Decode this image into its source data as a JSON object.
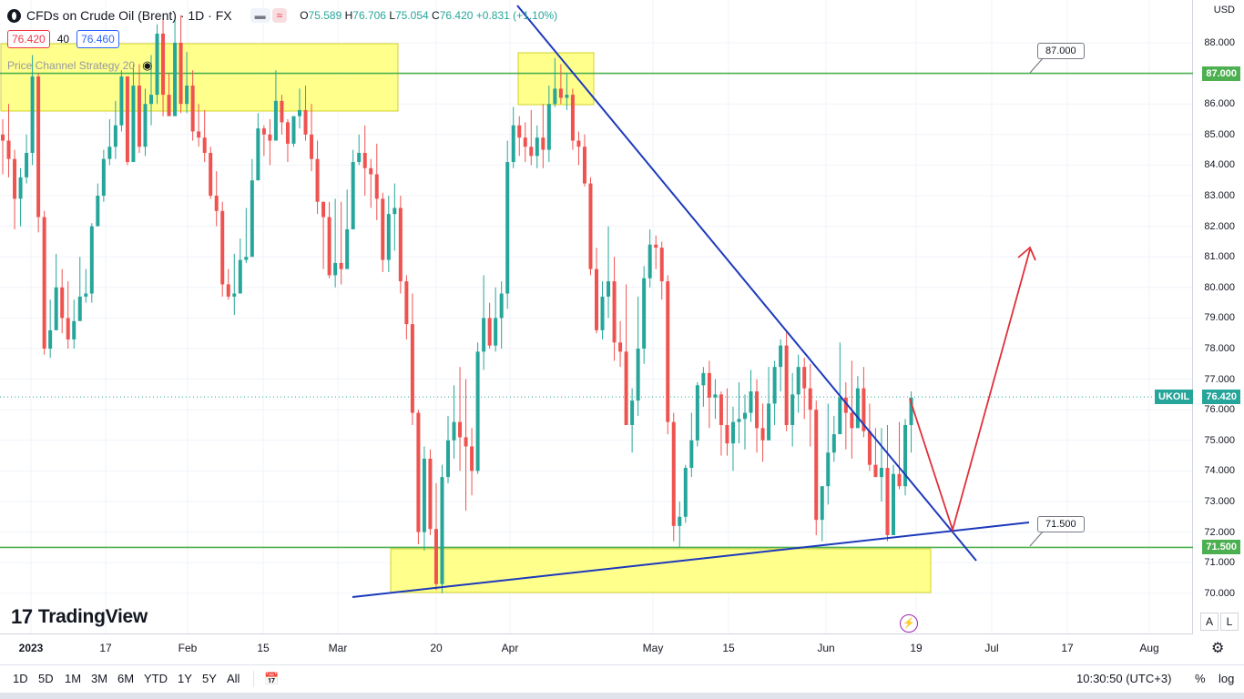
{
  "header": {
    "symbol_title": "CFDs on Crude Oil (Brent) · 1D · FX",
    "ohlc": {
      "o_label": "O",
      "o": "75.589",
      "h_label": "H",
      "h": "76.706",
      "l_label": "L",
      "l": "75.054",
      "c_label": "C",
      "c": "76.420",
      "change": "+0.831 (+1.10%)"
    },
    "bid": "76.420",
    "spread": "40",
    "ask": "76.460",
    "indicator": "Price Channel Strategy 20"
  },
  "colors": {
    "up": "#26a69a",
    "down": "#ef5350",
    "trend": "#1c39bb",
    "level": "#4caf50",
    "zone": "#ffff66",
    "projection": "#e0303a"
  },
  "chart_data": {
    "type": "candlestick",
    "currency": "USD",
    "ylim": [
      69.2,
      88.6
    ],
    "y_ticks": [
      "70.000",
      "71.000",
      "72.000",
      "73.000",
      "74.000",
      "75.000",
      "76.000",
      "77.000",
      "78.000",
      "79.000",
      "80.000",
      "81.000",
      "82.000",
      "83.000",
      "84.000",
      "85.000",
      "86.000",
      "87.000",
      "88.000"
    ],
    "x_ticks": [
      {
        "label": "2023",
        "bold": true
      },
      {
        "label": "17"
      },
      {
        "label": "Feb"
      },
      {
        "label": "15"
      },
      {
        "label": "Mar"
      },
      {
        "label": "20"
      },
      {
        "label": "Apr"
      },
      {
        "label": "May"
      },
      {
        "label": "15"
      },
      {
        "label": "Jun"
      },
      {
        "label": "19"
      },
      {
        "label": "Jul"
      },
      {
        "label": "17"
      },
      {
        "label": "Aug"
      }
    ],
    "candles": [
      [
        85.0,
        84.8,
        85.5,
        83.7
      ],
      [
        84.8,
        84.2,
        86.0,
        83.6
      ],
      [
        84.2,
        82.9,
        84.5,
        81.9
      ],
      [
        82.9,
        83.6,
        83.9,
        82.0
      ],
      [
        83.6,
        84.4,
        85.0,
        83.4
      ],
      [
        84.4,
        86.9,
        87.6,
        84.0
      ],
      [
        86.9,
        82.3,
        87.0,
        81.8
      ],
      [
        82.3,
        78.0,
        82.5,
        77.8
      ],
      [
        78.0,
        78.6,
        79.6,
        77.7
      ],
      [
        78.6,
        80.0,
        81.1,
        79.4
      ],
      [
        80.0,
        79.0,
        80.6,
        78.5
      ],
      [
        79.0,
        78.3,
        80.2,
        78.0
      ],
      [
        78.3,
        78.9,
        79.6,
        78.0
      ],
      [
        78.9,
        79.7,
        81.0,
        79.0
      ],
      [
        79.7,
        79.8,
        80.6,
        79.5
      ],
      [
        79.8,
        82.0,
        82.1,
        79.5
      ],
      [
        82.0,
        83.0,
        83.4,
        82.1
      ],
      [
        83.0,
        84.2,
        84.5,
        82.8
      ],
      [
        84.2,
        84.6,
        85.5,
        84.0
      ],
      [
        84.6,
        85.3,
        86.1,
        84.2
      ],
      [
        85.3,
        86.9,
        87.1,
        85.1
      ],
      [
        86.9,
        84.1,
        86.9,
        84.0
      ],
      [
        84.1,
        86.6,
        87.3,
        85.7
      ],
      [
        86.6,
        84.6,
        87.3,
        84.4
      ],
      [
        84.6,
        86.0,
        86.5,
        84.3
      ],
      [
        86.0,
        86.3,
        87.6,
        85.3
      ],
      [
        86.3,
        88.3,
        88.6,
        86.0
      ],
      [
        88.3,
        86.3,
        88.8,
        85.6
      ],
      [
        86.3,
        85.6,
        87.0,
        85.7
      ],
      [
        85.6,
        88.0,
        88.8,
        87.4
      ],
      [
        88.0,
        86.0,
        88.9,
        85.7
      ],
      [
        86.0,
        86.6,
        87.7,
        85.7
      ],
      [
        86.6,
        85.1,
        87.1,
        84.8
      ],
      [
        85.1,
        84.9,
        86.0,
        84.6
      ],
      [
        84.9,
        84.4,
        85.8,
        84.1
      ],
      [
        84.4,
        83.0,
        84.6,
        82.9
      ],
      [
        83.0,
        82.5,
        83.8,
        82.0
      ],
      [
        82.5,
        80.1,
        82.8,
        79.7
      ],
      [
        80.1,
        79.7,
        80.6,
        79.6
      ],
      [
        79.7,
        79.8,
        81.1,
        79.1
      ],
      [
        79.8,
        80.9,
        81.6,
        80.0
      ],
      [
        80.9,
        81.0,
        82.6,
        80.8
      ],
      [
        81.0,
        83.5,
        84.2,
        82.3
      ],
      [
        83.5,
        85.2,
        85.7,
        83.8
      ],
      [
        85.2,
        85.0,
        85.3,
        84.3
      ],
      [
        85.0,
        84.8,
        85.5,
        84.0
      ],
      [
        84.8,
        86.1,
        87.1,
        85.4
      ],
      [
        86.1,
        85.4,
        86.3,
        85.0
      ],
      [
        85.4,
        84.7,
        85.5,
        84.1
      ],
      [
        84.7,
        85.6,
        85.6,
        84.6
      ],
      [
        85.6,
        85.8,
        86.5,
        85.2
      ],
      [
        85.8,
        85.0,
        86.6,
        84.8
      ],
      [
        85.0,
        84.2,
        86.0,
        83.8
      ],
      [
        84.2,
        82.8,
        84.8,
        82.4
      ],
      [
        82.8,
        82.3,
        82.4,
        80.6
      ],
      [
        82.3,
        80.4,
        82.8,
        80.3
      ],
      [
        80.4,
        80.8,
        82.9,
        80.0
      ],
      [
        80.8,
        80.6,
        82.8,
        80.1
      ],
      [
        80.6,
        81.9,
        83.2,
        81.0
      ],
      [
        81.9,
        84.1,
        84.5,
        81.9
      ],
      [
        84.1,
        84.4,
        85.0,
        84.0
      ],
      [
        84.4,
        83.9,
        85.3,
        83.0
      ],
      [
        83.9,
        83.7,
        84.2,
        82.6
      ],
      [
        83.7,
        82.9,
        84.7,
        82.2
      ],
      [
        82.9,
        80.9,
        83.1,
        80.5
      ],
      [
        80.9,
        82.4,
        83.0,
        80.5
      ],
      [
        82.4,
        82.6,
        83.4,
        81.2
      ],
      [
        82.6,
        80.2,
        83.0,
        79.8
      ],
      [
        80.2,
        78.8,
        80.4,
        78.3
      ],
      [
        78.8,
        75.9,
        79.8,
        75.5
      ],
      [
        75.9,
        72.0,
        76.0,
        71.6
      ],
      [
        72.0,
        74.4,
        74.8,
        71.4
      ],
      [
        74.4,
        72.1,
        74.7,
        71.9
      ],
      [
        72.1,
        70.3,
        73.6,
        70.1
      ],
      [
        70.3,
        73.8,
        74.2,
        70.0
      ],
      [
        73.8,
        75.0,
        75.8,
        73.6
      ],
      [
        75.0,
        75.6,
        76.8,
        74.4
      ],
      [
        75.6,
        75.1,
        77.4,
        74.0
      ],
      [
        75.1,
        74.8,
        77.0,
        72.7
      ],
      [
        74.8,
        74.0,
        75.4,
        73.2
      ],
      [
        74.0,
        77.9,
        78.2,
        73.9
      ],
      [
        77.9,
        79.0,
        80.4,
        77.3
      ],
      [
        79.0,
        78.1,
        79.5,
        78.0
      ],
      [
        78.1,
        79.0,
        80.0,
        77.9
      ],
      [
        79.0,
        79.8,
        80.2,
        78.0
      ],
      [
        79.8,
        84.1,
        84.8,
        79.3
      ],
      [
        84.1,
        85.3,
        85.9,
        83.9
      ],
      [
        85.3,
        84.9,
        85.6,
        84.3
      ],
      [
        84.9,
        84.6,
        85.4,
        84.1
      ],
      [
        84.6,
        84.3,
        85.8,
        84.0
      ],
      [
        84.3,
        84.9,
        85.3,
        83.9
      ],
      [
        84.9,
        84.5,
        86.0,
        83.9
      ],
      [
        84.5,
        86.0,
        86.6,
        84.1
      ],
      [
        86.0,
        86.5,
        87.5,
        85.9
      ],
      [
        86.5,
        86.2,
        87.3,
        86.0
      ],
      [
        86.2,
        86.3,
        87.0,
        85.8
      ],
      [
        86.3,
        84.8,
        86.5,
        84.5
      ],
      [
        84.8,
        84.6,
        85.1,
        84.0
      ],
      [
        84.6,
        83.4,
        85.0,
        83.3
      ],
      [
        83.4,
        80.6,
        83.6,
        80.4
      ],
      [
        80.6,
        78.6,
        81.3,
        78.5
      ],
      [
        78.6,
        79.7,
        80.2,
        78.3
      ],
      [
        79.7,
        80.2,
        82.0,
        79.0
      ],
      [
        80.2,
        78.2,
        81.0,
        77.6
      ],
      [
        78.2,
        77.9,
        78.9,
        77.4
      ],
      [
        77.9,
        75.5,
        80.1,
        75.5
      ],
      [
        75.5,
        76.3,
        76.7,
        74.6
      ],
      [
        76.3,
        78.0,
        79.7,
        75.8
      ],
      [
        78.0,
        80.3,
        80.7,
        77.5
      ],
      [
        80.3,
        81.4,
        81.9,
        80.0
      ],
      [
        81.4,
        81.3,
        81.7,
        80.6
      ],
      [
        81.3,
        80.2,
        81.5,
        79.6
      ],
      [
        80.2,
        75.6,
        80.4,
        75.2
      ],
      [
        75.6,
        72.2,
        75.9,
        71.7
      ],
      [
        72.2,
        72.5,
        73.0,
        71.5
      ],
      [
        72.5,
        74.1,
        74.2,
        72.3
      ],
      [
        74.1,
        75.0,
        75.9,
        73.8
      ],
      [
        75.0,
        76.8,
        76.9,
        74.8
      ],
      [
        76.8,
        77.2,
        77.4,
        76.1
      ],
      [
        77.2,
        76.4,
        77.6,
        75.4
      ],
      [
        76.4,
        76.5,
        77.0,
        75.7
      ],
      [
        76.5,
        75.5,
        76.6,
        74.5
      ],
      [
        75.5,
        74.9,
        76.7,
        74.5
      ],
      [
        74.9,
        75.6,
        76.1,
        74.0
      ],
      [
        75.6,
        75.7,
        76.9,
        74.9
      ],
      [
        75.7,
        75.9,
        76.5,
        74.7
      ],
      [
        75.9,
        76.6,
        77.3,
        75.6
      ],
      [
        76.6,
        75.4,
        77.0,
        74.6
      ],
      [
        75.4,
        75.0,
        76.2,
        74.3
      ],
      [
        75.0,
        76.2,
        77.4,
        75.2
      ],
      [
        76.2,
        77.4,
        77.6,
        75.5
      ],
      [
        77.4,
        78.1,
        78.3,
        76.6
      ],
      [
        78.1,
        75.5,
        78.6,
        75.3
      ],
      [
        75.5,
        76.5,
        77.2,
        74.8
      ],
      [
        76.5,
        77.4,
        77.8,
        75.9
      ],
      [
        77.4,
        76.7,
        77.7,
        75.7
      ],
      [
        76.7,
        76.0,
        77.5,
        74.8
      ],
      [
        76.0,
        72.4,
        76.3,
        71.9
      ],
      [
        72.4,
        73.5,
        73.5,
        71.7
      ],
      [
        73.5,
        74.6,
        76.2,
        72.9
      ],
      [
        74.6,
        75.2,
        75.8,
        74.3
      ],
      [
        75.2,
        76.4,
        78.2,
        76.0
      ],
      [
        76.4,
        75.9,
        76.9,
        74.7
      ],
      [
        75.9,
        75.4,
        77.6,
        74.4
      ],
      [
        75.4,
        76.7,
        77.1,
        75.8
      ],
      [
        76.7,
        75.3,
        77.4,
        75.1
      ],
      [
        75.3,
        74.2,
        76.2,
        74.0
      ],
      [
        74.2,
        73.8,
        75.4,
        73.8
      ],
      [
        73.8,
        74.1,
        75.4,
        73.0
      ],
      [
        74.1,
        71.9,
        75.5,
        71.7
      ],
      [
        71.9,
        73.9,
        74.2,
        71.9
      ],
      [
        73.9,
        73.5,
        75.6,
        73.4
      ],
      [
        73.5,
        75.5,
        75.7,
        73.2
      ],
      [
        75.5,
        76.4,
        76.6,
        74.6
      ]
    ],
    "levels": [
      {
        "price": 87.0,
        "label": "87.000"
      },
      {
        "price": 71.5,
        "label": "71.500"
      }
    ],
    "last_price": "76.420",
    "symbol_tag": "UKOIL"
  },
  "footer": {
    "brand": "TradingView",
    "timeframes": [
      "1D",
      "5D",
      "1M",
      "3M",
      "6M",
      "YTD",
      "1Y",
      "5Y",
      "All"
    ],
    "clock": "10:30:50 (UTC+3)",
    "percent": "%",
    "log": "log",
    "auto_a": "A",
    "auto_l": "L"
  }
}
